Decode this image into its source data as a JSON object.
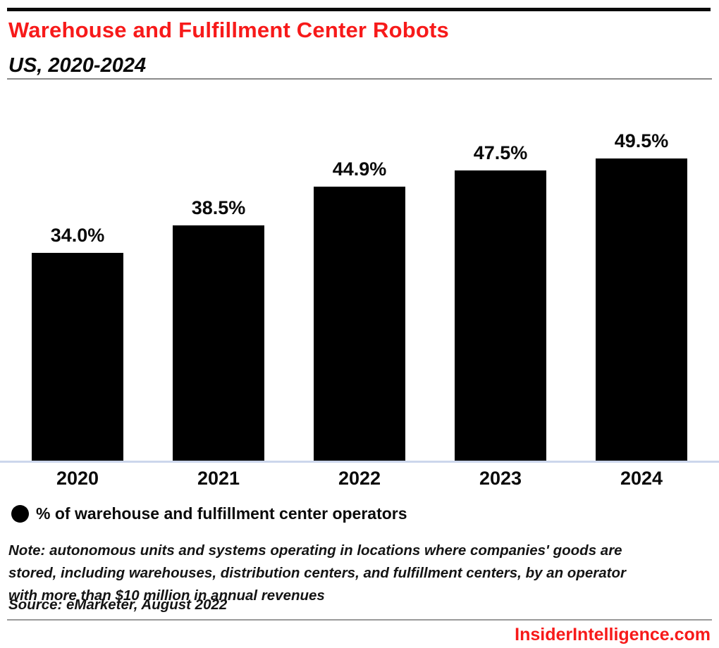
{
  "header": {
    "title": "Warehouse and Fulfillment Center Robots",
    "subtitle": "US, 2020-2024"
  },
  "chart_data": {
    "type": "bar",
    "categories": [
      "2020",
      "2021",
      "2022",
      "2023",
      "2024"
    ],
    "values": [
      34.0,
      38.5,
      44.9,
      47.5,
      49.5
    ],
    "value_labels": [
      "34.0%",
      "38.5%",
      "44.9%",
      "47.5%",
      "49.5%"
    ],
    "title": "Warehouse and Fulfillment Center Robots",
    "subtitle": "US, 2020-2024",
    "xlabel": "",
    "ylabel": "",
    "ylim": [
      0,
      52
    ],
    "grid": false,
    "bar_color": "#000000",
    "legend": {
      "position": "bottom-left",
      "entries": [
        "% of warehouse and fulfillment center operators"
      ]
    }
  },
  "legend": {
    "label": "% of warehouse and fulfillment center operators"
  },
  "footer": {
    "note": "Note: autonomous units and systems operating in locations where companies' goods are stored, including warehouses, distribution centers, and fulfillment centers, by an operator with more than $10 million in annual revenues",
    "source": "Source: eMarketer, August 2022",
    "brand": "InsiderIntelligence.com"
  },
  "colors": {
    "accent_red": "#f71a1a",
    "bar_black": "#000000",
    "axis_baseline": "#ccd6ec",
    "divider_gray": "#8a8a8a"
  }
}
